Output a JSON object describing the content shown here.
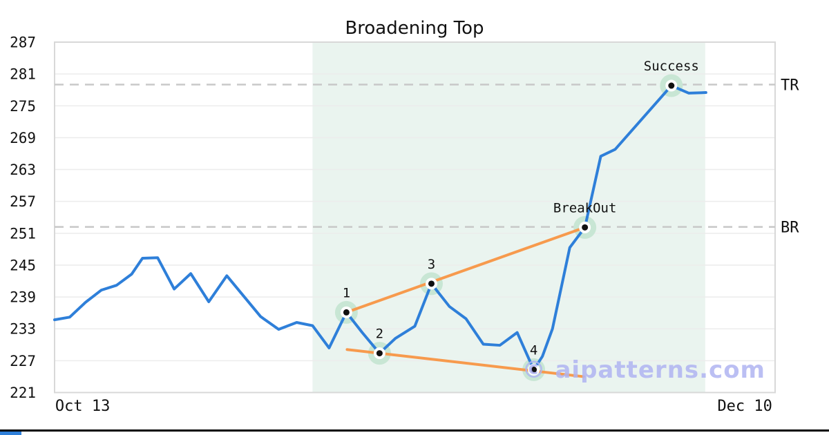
{
  "title": "Broadening Top",
  "watermark": "© aipatterns.com",
  "chart_data": {
    "type": "line",
    "title": "Broadening Top",
    "ylim": [
      221,
      287
    ],
    "y_ticks": [
      287,
      281,
      275,
      269,
      263,
      257,
      251,
      245,
      239,
      233,
      227,
      221
    ],
    "x_ticks": [
      {
        "label": "Oct 13",
        "x": 0.039
      },
      {
        "label": "Dec 10",
        "x": 0.958
      }
    ],
    "grid": "horizontal",
    "legend": "none",
    "price_series": [
      [
        0.0,
        234.7
      ],
      [
        0.021,
        235.2
      ],
      [
        0.043,
        238.0
      ],
      [
        0.065,
        240.3
      ],
      [
        0.086,
        241.2
      ],
      [
        0.107,
        243.3
      ],
      [
        0.122,
        246.3
      ],
      [
        0.143,
        246.4
      ],
      [
        0.166,
        240.5
      ],
      [
        0.189,
        243.4
      ],
      [
        0.214,
        238.1
      ],
      [
        0.239,
        243.0
      ],
      [
        0.286,
        235.3
      ],
      [
        0.311,
        232.9
      ],
      [
        0.336,
        234.2
      ],
      [
        0.358,
        233.6
      ],
      [
        0.381,
        229.4
      ],
      [
        0.405,
        236.1
      ],
      [
        0.427,
        232.3
      ],
      [
        0.451,
        228.4
      ],
      [
        0.473,
        231.2
      ],
      [
        0.5,
        233.5
      ],
      [
        0.523,
        241.5
      ],
      [
        0.548,
        237.2
      ],
      [
        0.571,
        234.9
      ],
      [
        0.595,
        230.1
      ],
      [
        0.618,
        229.9
      ],
      [
        0.642,
        232.3
      ],
      [
        0.665,
        225.3
      ],
      [
        0.677,
        227.8
      ],
      [
        0.691,
        233.0
      ],
      [
        0.715,
        248.3
      ],
      [
        0.736,
        252.1
      ],
      [
        0.758,
        265.5
      ],
      [
        0.778,
        266.8
      ],
      [
        0.856,
        278.8
      ],
      [
        0.88,
        277.4
      ],
      [
        0.904,
        277.5
      ]
    ],
    "pattern_points": [
      {
        "label": "1",
        "x": 0.405,
        "value": 236.1
      },
      {
        "label": "2",
        "x": 0.451,
        "value": 228.4
      },
      {
        "label": "3",
        "x": 0.523,
        "value": 241.5
      },
      {
        "label": "4",
        "x": 0.665,
        "value": 225.3
      },
      {
        "label": "BreakOut",
        "x": 0.736,
        "value": 252.1
      },
      {
        "label": "Success",
        "x": 0.856,
        "value": 278.8
      }
    ],
    "trendlines": [
      {
        "name": "upper-broadening-line",
        "points": [
          [
            0.405,
            236.1
          ],
          [
            0.736,
            252.1
          ]
        ]
      },
      {
        "name": "lower-broadening-line",
        "points": [
          [
            0.406,
            229.1
          ],
          [
            0.734,
            224.0
          ]
        ]
      }
    ],
    "h_lines": [
      {
        "label": "TR",
        "value": 279.0
      },
      {
        "label": "BR",
        "value": 252.2
      }
    ],
    "shaded_region": {
      "x_start": 0.358,
      "x_end": 0.903
    },
    "colors": {
      "price_line": "#2e7fd9",
      "trendline": "#f79a4d",
      "marker_halo": "#c8e6d4",
      "marker_dot": "#111111",
      "shade": "#eaf4ef",
      "grid": "#ececec",
      "border": "#d8d8d8",
      "dashed": "#c8c8c8",
      "tick_text": "#111111",
      "watermark": "#b0b4f2",
      "accent_bar": "#2e7fd9"
    }
  }
}
